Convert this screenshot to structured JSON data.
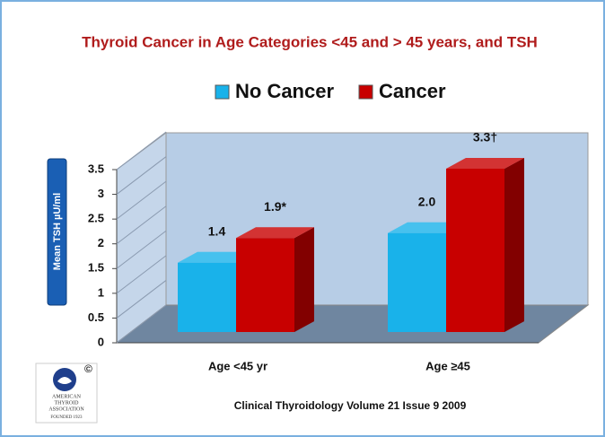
{
  "chart_data": {
    "type": "bar3d",
    "title": "Thyroid Cancer in Age Categories <45 and > 45 years, and TSH",
    "y_label": "Mean TSH µU/ml",
    "categories": [
      "Age <45 yr",
      "Age ≥45"
    ],
    "series": [
      {
        "name": "No Cancer",
        "color": "#19b2ea",
        "values": [
          1.4,
          2.0
        ],
        "value_labels": [
          "1.4",
          "2.0"
        ]
      },
      {
        "name": "Cancer",
        "color": "#c80000",
        "values": [
          1.9,
          3.3
        ],
        "value_labels": [
          "1.9*",
          "3.3†"
        ]
      }
    ],
    "ylim": [
      0,
      3.5
    ],
    "yticks": [
      0,
      0.5,
      1,
      1.5,
      2,
      2.5,
      3,
      3.5
    ],
    "legend": "top",
    "source": "Clinical Thyroidology Volume 21 Issue 9 2009",
    "logo": {
      "mark": "©",
      "lines": [
        "AMERICAN",
        "THYROID",
        "ASSOCIATION"
      ],
      "founded": "FOUNDED 1923"
    }
  }
}
